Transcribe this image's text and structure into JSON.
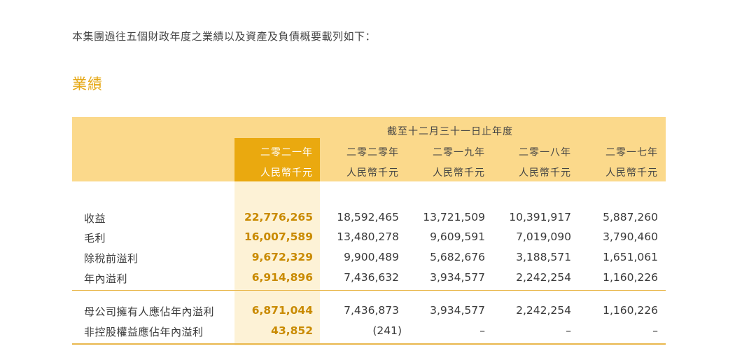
{
  "intro": "本集團過往五個財政年度之業績以及資產及負債概要載列如下：",
  "section_title": "業績",
  "period_header": "截至十二月三十一日止年度",
  "years": [
    "二零二一年",
    "二零二零年",
    "二零一九年",
    "二零一八年",
    "二零一七年"
  ],
  "unit": "人民幣千元",
  "rows": [
    {
      "label": "收益",
      "values": [
        "22,776,265",
        "18,592,465",
        "13,721,509",
        "10,391,917",
        "5,887,260"
      ]
    },
    {
      "label": "毛利",
      "values": [
        "16,007,589",
        "13,480,278",
        "9,609,591",
        "7,019,090",
        "3,790,460"
      ]
    },
    {
      "label": "除稅前溢利",
      "values": [
        "9,672,329",
        "9,900,489",
        "5,682,676",
        "3,188,571",
        "1,651,061"
      ]
    },
    {
      "label": "年內溢利",
      "values": [
        "6,914,896",
        "7,436,632",
        "3,934,577",
        "2,242,254",
        "1,160,226"
      ]
    },
    {
      "label": "母公司擁有人應佔年內溢利",
      "values": [
        "6,871,044",
        "7,436,873",
        "3,934,577",
        "2,242,254",
        "1,160,226"
      ]
    },
    {
      "label": "非控股權益應佔年內溢利",
      "values": [
        "43,852",
        "(241)",
        "–",
        "–",
        "–"
      ]
    }
  ],
  "colors": {
    "accent": "#e6a817",
    "highlight_header": "#eaa90f",
    "header_band": "#fbd98b",
    "highlight_column": "#fdf2d6"
  }
}
